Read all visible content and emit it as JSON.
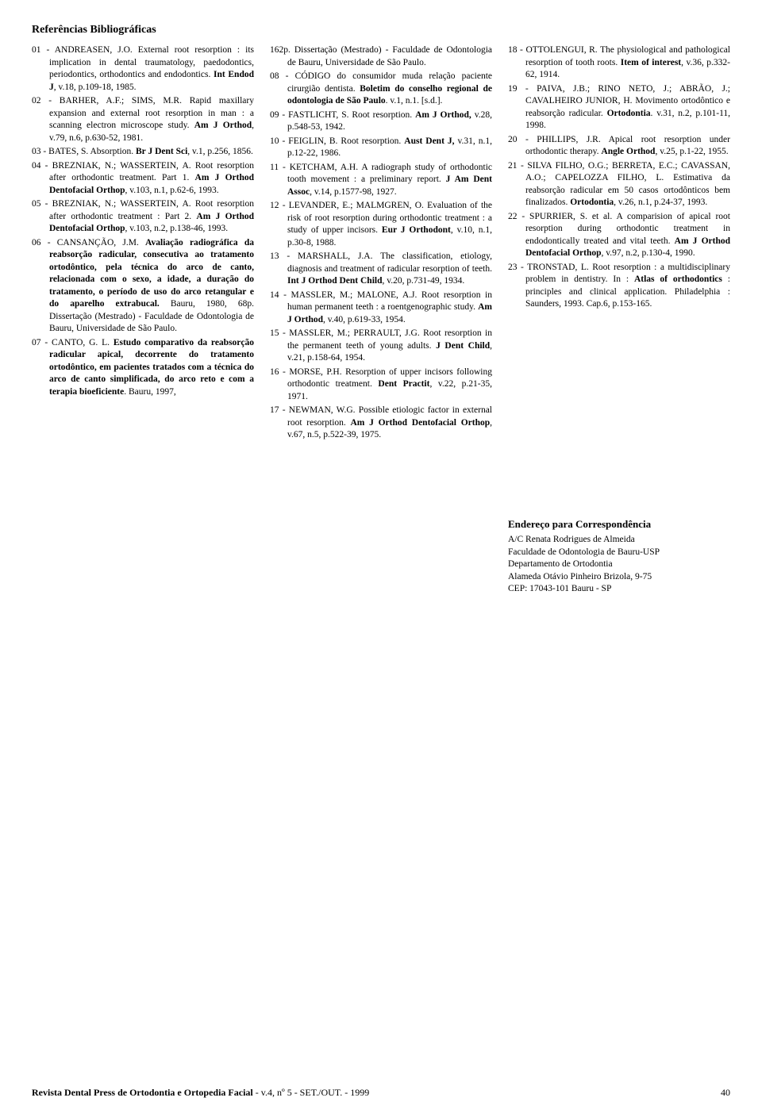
{
  "title": "Referências Bibliográficas",
  "col1": [
    "01 - ANDREASEN, J.O. External root resorption : its implication in dental traumatology, paedodontics, periodontics, orthodontics and endodontics. <b>Int Endod J</b>, v.18, p.109-18, 1985.",
    "02 - BARHER, A.F.; SIMS, M.R. Rapid maxillary expansion and external root resorption in man : a scanning electron microscope study. <b>Am J Orthod</b>, v.79, n.6, p.630-52, 1981.",
    "03 - BATES, S. Absorption. <b>Br J Dent Sci</b>, v.1, p.256, 1856.",
    "04 - BREZNIAK, N.; WASSERTEIN, A. Root resorption after orthodontic treatment. Part 1. <b>Am J Orthod Dentofacial Orthop</b>, v.103, n.1, p.62-6, 1993.",
    "05 - BREZNIAK, N.; WASSERTEIN, A. Root resorption after orthodontic treatment : Part 2. <b>Am J Orthod Dentofacial Orthop</b>, v.103, n.2, p.138-46, 1993.",
    "06 - CANSANÇÃO, J.M. <b>Avaliação radiográfica da reabsorção radicular, consecutiva ao tratamento ortodôntico, pela técnica do arco de canto, relacionada com o sexo, a idade, a duração do tratamento, o período de uso do arco retangular e do aparelho extrabucal.</b> Bauru, 1980, 68p. Dissertação (Mestrado) - Faculdade de Odontologia de Bauru, Universidade de São Paulo.",
    "07 - CANTO, G. L. <b>Estudo comparativo da reabsorção radicular apical, decorrente do tratamento ortodôntico, em pacientes tratados com a técnica do arco de canto simplificada, do arco reto e com a terapia bioeficiente</b>. Bauru, 1997,"
  ],
  "col2": [
    "162p. Dissertação (Mestrado) - Faculdade de Odontologia de Bauru, Universidade de São Paulo.",
    "08 - CÓDIGO do consumidor muda relação paciente cirurgião dentista. <b>Boletim do conselho regional de odontologia de São Paulo</b>. v.1, n.1. [s.d.].",
    "09 - FASTLICHT, S. Root resorption. <b>Am J Orthod,</b> v.28, p.548-53, 1942.",
    "10 - FEIGLIN, B. Root resorption. <b>Aust Dent J,</b> v.31, n.1, p.12-22, 1986.",
    "11 - KETCHAM, A.H. A radiograph study of orthodontic tooth movement : a preliminary report. <b>J Am Dent Assoc</b>, v.14, p.1577-98, 1927.",
    "12 - LEVANDER, E.; MALMGREN, O. Evaluation of the risk of root resorption during orthodontic treatment : a study of upper incisors. <b>Eur J Orthodont</b>, v.10, n.1, p.30-8, 1988.",
    "13 - MARSHALL, J.A. The classification, etiology, diagnosis and treatment of radicular resorption of teeth. <b>Int J Orthod Dent Child</b>, v.20, p.731-49, 1934.",
    "14 - MASSLER, M.; MALONE, A.J. Root resorption in human permanent teeth : a roentgenographic study. <b>Am J Orthod</b>, v.40, p.619-33, 1954.",
    "15 - MASSLER, M.; PERRAULT, J.G. Root resorption in the permanent teeth of young adults. <b>J Dent Child</b>, v.21, p.158-64, 1954.",
    "16 - MORSE, P.H. Resorption of upper incisors following orthodontic treatment. <b>Dent Practit</b>, v.22, p.21-35, 1971.",
    "17 - NEWMAN, W.G. Possible etiologic factor in external root resorption. <b>Am J Orthod Dentofacial Orthop</b>, v.67, n.5, p.522-39, 1975."
  ],
  "col3": [
    "18 - OTTOLENGUI, R. The physiological and pathological resorption of tooth roots. <b>Item of interest</b>, v.36, p.332-62, 1914.",
    "19 - PAIVA, J.B.; RINO NETO, J.; ABRÃO, J.; CAVALHEIRO JUNIOR, H. Movimento ortodôntico e reabsorção radicular. <b>Ortodontia</b>. v.31, n.2, p.101-11, 1998.",
    "20 - PHILLIPS, J.R. Apical root resorption under orthodontic therapy. <b>Angle Orthod</b>, v.25, p.1-22, 1955.",
    "21 - SILVA FILHO, O.G.; BERRETA, E.C.; CAVASSAN, A.O.; CAPELOZZA FILHO, L. Estimativa da reabsorção radicular em 50 casos ortodônticos bem finalizados. <b>Ortodontia</b>, v.26, n.1, p.24-37, 1993.",
    "22 - SPURRIER, S. et al. A comparision of apical root resorption during orthodontic treatment in endodontically treated and vital teeth. <b>Am J Orthod Dentofacial Orthop</b>, v.97, n.2, p.130-4, 1990.",
    "23 - TRONSTAD, L. Root resorption : a multidisciplinary problem in dentistry. In : <b>Atlas of orthodontics</b> : principles and clinical application. Philadelphia : Saunders, 1993. Cap.6, p.153-165."
  ],
  "address": {
    "title": "Endereço para Correspondência",
    "lines": [
      "A/C Renata Rodrigues de Almeida",
      "Faculdade de Odontologia de Bauru-USP",
      "Departamento de Ortodontia",
      "Alameda Otávio Pinheiro Brizola, 9-75",
      "CEP: 17043-101 Bauru - SP"
    ]
  },
  "footer": {
    "journal": "Revista Dental Press de Ortodontia e Ortopedia Facial",
    "issue": " - v.4, nº 5 - SET./OUT. - 1999",
    "page": "40"
  }
}
